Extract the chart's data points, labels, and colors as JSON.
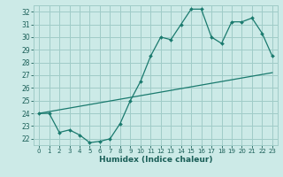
{
  "xlabel": "Humidex (Indice chaleur)",
  "bg_color": "#cceae7",
  "grid_color": "#a0ccc8",
  "line_color": "#1a7a6e",
  "xlim": [
    -0.5,
    23.5
  ],
  "ylim": [
    21.5,
    32.5
  ],
  "xticks": [
    0,
    1,
    2,
    3,
    4,
    5,
    6,
    7,
    8,
    9,
    10,
    11,
    12,
    13,
    14,
    15,
    16,
    17,
    18,
    19,
    20,
    21,
    22,
    23
  ],
  "yticks": [
    22,
    23,
    24,
    25,
    26,
    27,
    28,
    29,
    30,
    31,
    32
  ],
  "line1_x": [
    0,
    1,
    2,
    3,
    4,
    5,
    6,
    7,
    8,
    9,
    10,
    11,
    12,
    13,
    14,
    15,
    16,
    17,
    18,
    19,
    20,
    21,
    22,
    23
  ],
  "line1_y": [
    24.0,
    24.0,
    22.5,
    22.7,
    22.3,
    21.7,
    21.8,
    22.0,
    23.2,
    25.0,
    26.5,
    28.5,
    30.0,
    29.8,
    31.0,
    32.2,
    32.2,
    30.0,
    29.5,
    31.2,
    31.2,
    31.5,
    30.3,
    28.5
  ],
  "line2_x": [
    0,
    23
  ],
  "line2_y": [
    24.0,
    27.2
  ]
}
